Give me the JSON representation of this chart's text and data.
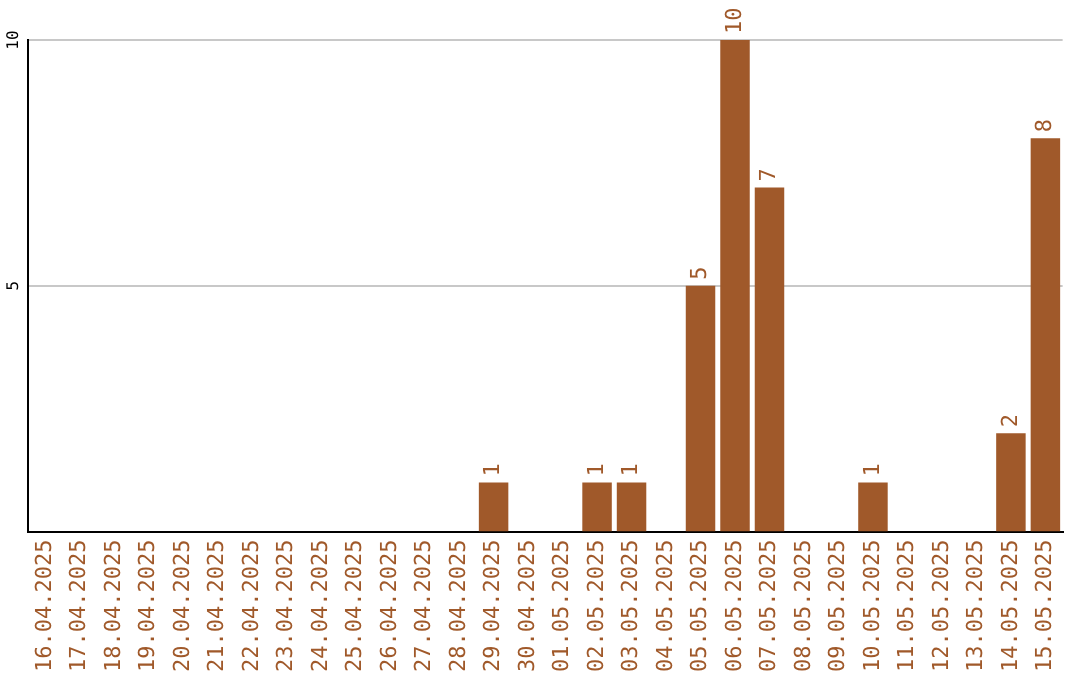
{
  "chart_data": {
    "type": "bar",
    "categories": [
      "16.04.2025",
      "17.04.2025",
      "18.04.2025",
      "19.04.2025",
      "20.04.2025",
      "21.04.2025",
      "22.04.2025",
      "23.04.2025",
      "24.04.2025",
      "25.04.2025",
      "26.04.2025",
      "27.04.2025",
      "28.04.2025",
      "29.04.2025",
      "30.04.2025",
      "01.05.2025",
      "02.05.2025",
      "03.05.2025",
      "04.05.2025",
      "05.05.2025",
      "06.05.2025",
      "07.05.2025",
      "08.05.2025",
      "09.05.2025",
      "10.05.2025",
      "11.05.2025",
      "12.05.2025",
      "13.05.2025",
      "14.05.2025",
      "15.05.2025"
    ],
    "values": [
      0,
      0,
      0,
      0,
      0,
      0,
      0,
      0,
      0,
      0,
      0,
      0,
      0,
      1,
      0,
      0,
      1,
      1,
      0,
      5,
      10,
      7,
      0,
      0,
      1,
      0,
      0,
      0,
      2,
      8
    ],
    "value_labels": [
      null,
      null,
      null,
      null,
      null,
      null,
      null,
      null,
      null,
      null,
      null,
      null,
      null,
      "1",
      null,
      null,
      "1",
      "1",
      null,
      "5",
      "10",
      "7",
      null,
      null,
      "1",
      null,
      null,
      null,
      "2",
      "8"
    ],
    "color": "#a0592a",
    "ylim": [
      0,
      10
    ],
    "yticks": [
      5,
      10
    ],
    "grid": "y",
    "legend": false
  }
}
